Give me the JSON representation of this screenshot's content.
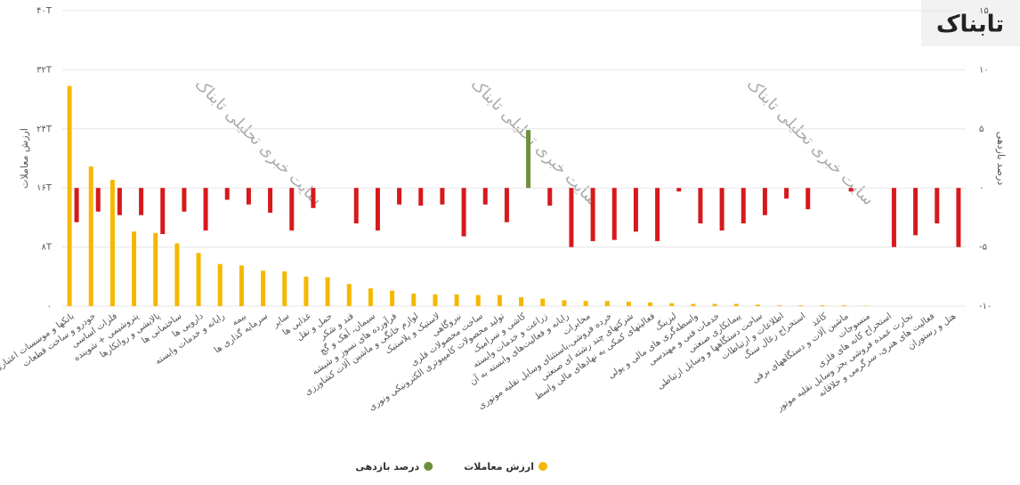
{
  "chart_data": {
    "type": "bar",
    "logo": "تابناک",
    "watermark": "سایت خبری تحلیلی تابناک",
    "y_label": "ارزش معاملات",
    "y2_label": "درصد بازدهی",
    "categories": [
      "بانکها و موسسات اعتباری",
      "خودرو و ساخت قطعات",
      "فلزات اساسی",
      "پتروشیمی + شوینده",
      "پالایشی و روانکارها",
      "ساختمانی ها",
      "دارویی ها",
      "رایانه و خدمات وابسته",
      "بیمه",
      "سرمایه گذاری ها",
      "سایر",
      "غذایی ها",
      "حمل و نقل",
      "قند و شکر",
      "سیمان، آهک و گچ",
      "فرآورده های نسوز و شیشه",
      "لوازم خانگی و ماشین آلات کشاورزی",
      "لاستیک و پلاستیک",
      "نیروگاهی",
      "ساخت محصولات فلزی",
      "تولید محصولات کامپیوتری الکترونیکی ونوری",
      "کاشی و سرامیک",
      "زراعت و خدمات وابسته",
      "رایانه و فعالیت‌های وابسته به آن",
      "مخابرات",
      "خرده فروشی،باستثنای وسایل نقلیه موتوری",
      "شرکتهای چند رشته ای صنعتی",
      "فعالیتهای کمکی به نهادهای مالی واسط",
      "لیزینگ",
      "واسطه‌گری های مالی و پولی",
      "خدمات فنی و مهندسی",
      "پیمانکاری صنعتی",
      "ساخت دستگاهها و وسایل ارتباطی",
      "اطلاعات و ارتباطات",
      "استخراج زغال سنگ",
      "کاغذ",
      "ماشین آلات و دستگاههای برقی",
      "منسوجات",
      "استخراج کانه های فلزی",
      "تجارت عمده فروشی بجز وسایل نقلیه موتور",
      "فعالیت های هنری، سرگرمی و خلاقانه",
      "هتل و رستوران"
    ],
    "series": [
      {
        "name": "ارزش معاملات",
        "color": "#f5b800",
        "values": [
          29.8,
          18.9,
          17.1,
          10.1,
          9.9,
          8.5,
          7.2,
          5.7,
          5.5,
          4.8,
          4.7,
          4.0,
          3.9,
          3.0,
          2.4,
          2.1,
          1.7,
          1.6,
          1.6,
          1.5,
          1.5,
          1.2,
          1.0,
          0.8,
          0.7,
          0.7,
          0.6,
          0.5,
          0.4,
          0.3,
          0.3,
          0.3,
          0.2,
          0.1,
          0.1,
          0.1,
          0.1,
          0.05,
          0,
          0,
          0,
          0
        ]
      },
      {
        "name": "درصد بازدهی",
        "color": "#6e8f3d",
        "negative_color": "#d7191c",
        "axis": "y2",
        "values": [
          -2.9,
          -2.0,
          -2.3,
          -2.3,
          -3.9,
          -2.0,
          -3.6,
          -1.0,
          -1.4,
          -2.1,
          -3.6,
          -1.7,
          0,
          -3.0,
          -3.6,
          -1.4,
          -1.5,
          -1.4,
          -4.1,
          -1.4,
          -2.9,
          4.9,
          -1.5,
          -5.0,
          -4.5,
          -4.4,
          -3.7,
          -4.5,
          -0.3,
          -3.0,
          -3.6,
          -3.0,
          -2.3,
          -0.9,
          -1.8,
          0,
          -0.3,
          0,
          -5.0,
          -4.0,
          -3.0,
          -5.0
        ]
      }
    ],
    "ylim": [
      0,
      40
    ],
    "yticks": [
      {
        "value": 0,
        "label": "۰"
      },
      {
        "value": 8,
        "label": "۸T"
      },
      {
        "value": 16,
        "label": "۱۶T"
      },
      {
        "value": 24,
        "label": "۲۴T"
      },
      {
        "value": 32,
        "label": "۳۲T"
      },
      {
        "value": 40,
        "label": "۴۰T"
      }
    ],
    "y2lim": [
      -10,
      15
    ],
    "y2ticks": [
      {
        "value": -10,
        "label": "-۱۰"
      },
      {
        "value": -5,
        "label": "-۵"
      },
      {
        "value": 0,
        "label": "۰"
      },
      {
        "value": 5,
        "label": "۵"
      },
      {
        "value": 10,
        "label": "۱۰"
      },
      {
        "value": 15,
        "label": "۱۵"
      }
    ],
    "grid": true
  }
}
